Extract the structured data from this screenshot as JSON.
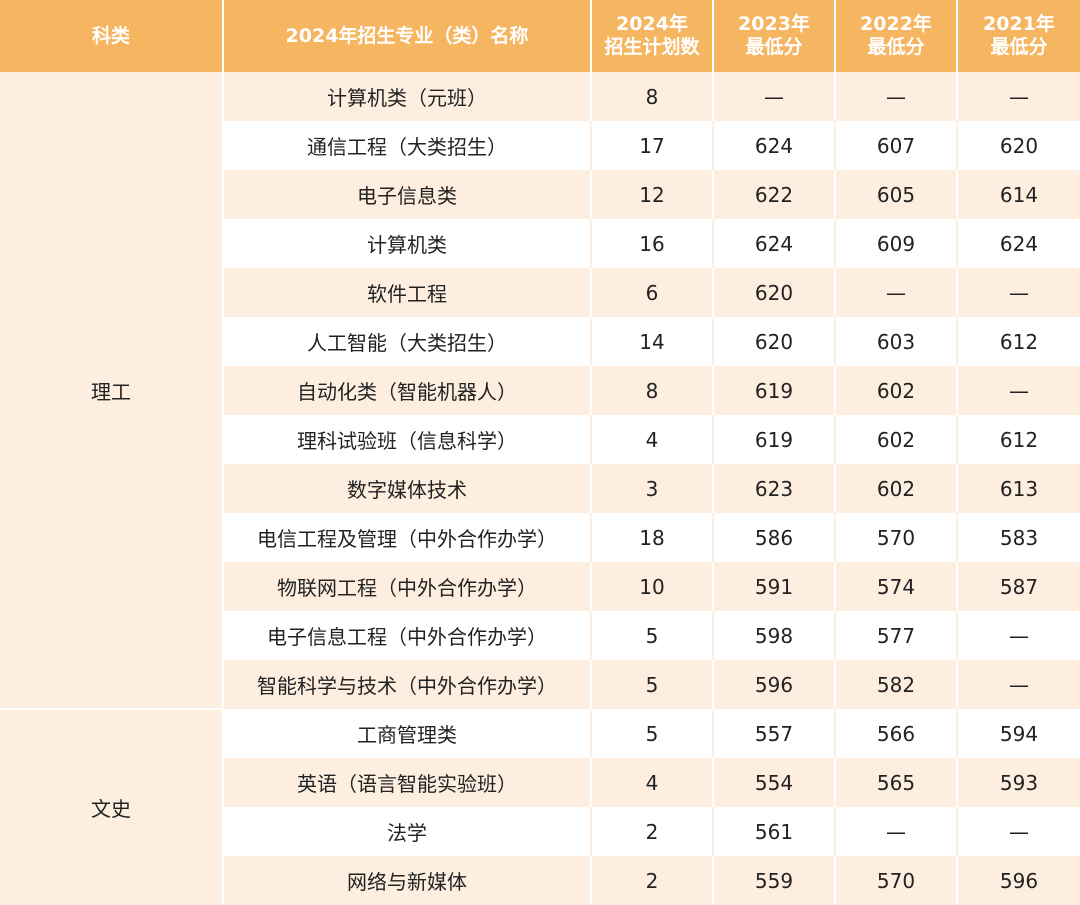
{
  "headers": {
    "category": [
      "科类"
    ],
    "major": [
      "2024年招生专业（类）名称"
    ],
    "plan": [
      "2024年",
      "招生计划数"
    ],
    "y2023": [
      "2023年",
      "最低分"
    ],
    "y2022": [
      "2022年",
      "最低分"
    ],
    "y2021": [
      "2021年",
      "最低分"
    ]
  },
  "colors": {
    "header_bg": "#f5b561",
    "band": "#fdeee0",
    "text": "#222222"
  },
  "groups": [
    {
      "label": "理工",
      "row_count": 13
    },
    {
      "label": "文史",
      "row_count": 4
    }
  ],
  "rows": [
    {
      "major": "计算机类（元班）",
      "plan": "8",
      "y2023": "—",
      "y2022": "—",
      "y2021": "—"
    },
    {
      "major": "通信工程（大类招生）",
      "plan": "17",
      "y2023": "624",
      "y2022": "607",
      "y2021": "620"
    },
    {
      "major": "电子信息类",
      "plan": "12",
      "y2023": "622",
      "y2022": "605",
      "y2021": "614"
    },
    {
      "major": "计算机类",
      "plan": "16",
      "y2023": "624",
      "y2022": "609",
      "y2021": "624"
    },
    {
      "major": "软件工程",
      "plan": "6",
      "y2023": "620",
      "y2022": "—",
      "y2021": "—"
    },
    {
      "major": "人工智能（大类招生）",
      "plan": "14",
      "y2023": "620",
      "y2022": "603",
      "y2021": "612"
    },
    {
      "major": "自动化类（智能机器人）",
      "plan": "8",
      "y2023": "619",
      "y2022": "602",
      "y2021": "—"
    },
    {
      "major": "理科试验班（信息科学）",
      "plan": "4",
      "y2023": "619",
      "y2022": "602",
      "y2021": "612"
    },
    {
      "major": "数字媒体技术",
      "plan": "3",
      "y2023": "623",
      "y2022": "602",
      "y2021": "613"
    },
    {
      "major": "电信工程及管理（中外合作办学）",
      "plan": "18",
      "y2023": "586",
      "y2022": "570",
      "y2021": "583"
    },
    {
      "major": "物联网工程（中外合作办学）",
      "plan": "10",
      "y2023": "591",
      "y2022": "574",
      "y2021": "587"
    },
    {
      "major": "电子信息工程（中外合作办学）",
      "plan": "5",
      "y2023": "598",
      "y2022": "577",
      "y2021": "—"
    },
    {
      "major": "智能科学与技术（中外合作办学）",
      "plan": "5",
      "y2023": "596",
      "y2022": "582",
      "y2021": "—"
    },
    {
      "major": "工商管理类",
      "plan": "5",
      "y2023": "557",
      "y2022": "566",
      "y2021": "594"
    },
    {
      "major": "英语（语言智能实验班）",
      "plan": "4",
      "y2023": "554",
      "y2022": "565",
      "y2021": "593"
    },
    {
      "major": "法学",
      "plan": "2",
      "y2023": "561",
      "y2022": "—",
      "y2021": "—"
    },
    {
      "major": "网络与新媒体",
      "plan": "2",
      "y2023": "559",
      "y2022": "570",
      "y2021": "596"
    }
  ]
}
